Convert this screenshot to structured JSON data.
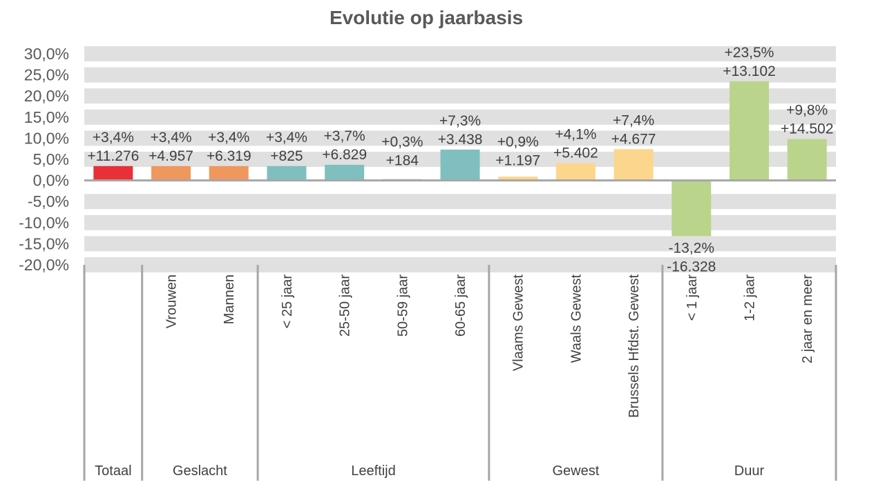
{
  "chart_data": {
    "type": "bar",
    "title": "Evolutie op jaarbasis",
    "xlabel": "",
    "ylabel": "",
    "ylim": [
      -20,
      30
    ],
    "ytick_step": 5,
    "yticks": [
      "30,0%",
      "25,0%",
      "20,0%",
      "15,0%",
      "10,0%",
      "5,0%",
      "0,0%",
      "-5,0%",
      "-10,0%",
      "-15,0%",
      "-20,0%"
    ],
    "grid": "alternating horizontal bands",
    "legend": "none",
    "categories": [
      "",
      "Vrouwen",
      "Mannen",
      "< 25 jaar",
      "25-50 jaar",
      "50-59 jaar",
      "60-65 jaar",
      "Vlaams Gewest",
      "Waals Gewest",
      "Brussels Hfdst. Gewest",
      "< 1 jaar",
      "1-2 jaar",
      "2 jaar en meer"
    ],
    "values": [
      3.4,
      3.4,
      3.4,
      3.4,
      3.7,
      0.3,
      7.3,
      0.9,
      4.1,
      7.4,
      -13.2,
      23.5,
      9.8
    ],
    "pct_labels": [
      "+3,4%",
      "+3,4%",
      "+3,4%",
      "+3,4%",
      "+3,7%",
      "+0,3%",
      "+7,3%",
      "+0,9%",
      "+4,1%",
      "+7,4%",
      "-13,2%",
      "+23,5%",
      "+9,8%"
    ],
    "abs_labels": [
      "+11.276",
      "+4.957",
      "+6.319",
      "+825",
      "+6.829",
      "+184",
      "+3.438",
      "+1.197",
      "+5.402",
      "+4.677",
      "-16.328",
      "+13.102",
      "+14.502"
    ],
    "groups": [
      {
        "label": "Totaal",
        "count": 1,
        "color": "#e83037"
      },
      {
        "label": "Geslacht",
        "count": 2,
        "color": "#f0975e"
      },
      {
        "label": "Leeftijd",
        "count": 4,
        "color": "#80bfbf"
      },
      {
        "label": "Gewest",
        "count": 3,
        "color": "#fdd68e"
      },
      {
        "label": "Duur",
        "count": 3,
        "color": "#bbd48b"
      }
    ]
  }
}
